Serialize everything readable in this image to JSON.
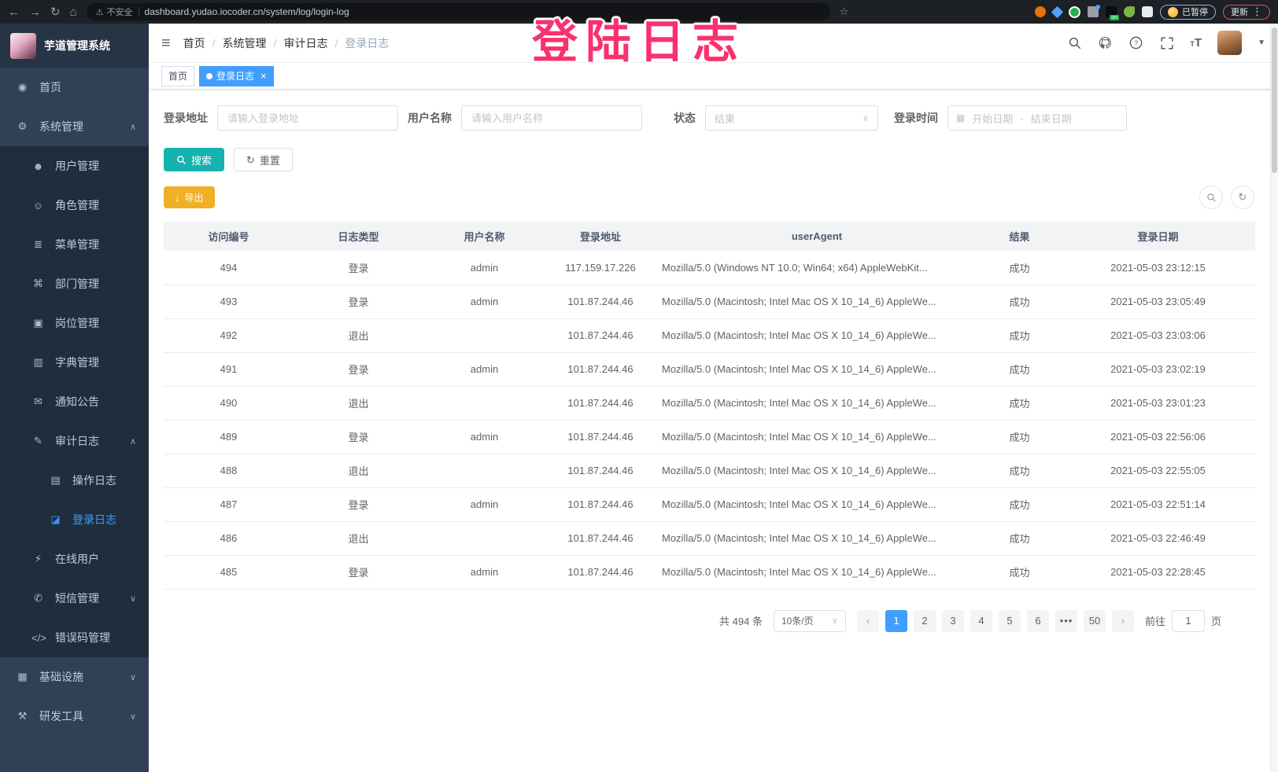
{
  "colors": {
    "accent": "#409EFF",
    "sidebar": "#304156",
    "submenu": "#1F2D3D",
    "search": "#16B2AF",
    "warning": "#F0B024",
    "annotation": "#F9316F"
  },
  "browser": {
    "not_secure": "不安全",
    "url": "dashboard.yudao.iocoder.cn/system/log/login-log",
    "paused_badge": "已暂停",
    "update_button": "更新"
  },
  "annotation": {
    "text": "登陆日志"
  },
  "sidebar": {
    "title": "芋道管理系统",
    "menu": [
      {
        "key": "home",
        "label": "首页",
        "icon": "dashboard-icon",
        "glyph": "◉",
        "level": 0,
        "expand": null,
        "active": false
      },
      {
        "key": "system-management",
        "label": "系统管理",
        "icon": "gear-icon",
        "glyph": "⚙",
        "level": 0,
        "expand": "up",
        "active": false
      },
      {
        "key": "user-management",
        "label": "用户管理",
        "icon": "user-icon",
        "glyph": "☻",
        "level": 1,
        "expand": null,
        "active": false
      },
      {
        "key": "role-management",
        "label": "角色管理",
        "icon": "roles-icon",
        "glyph": "☺",
        "level": 1,
        "expand": null,
        "active": false
      },
      {
        "key": "menu-management",
        "label": "菜单管理",
        "icon": "menu-list-icon",
        "glyph": "≣",
        "level": 1,
        "expand": null,
        "active": false
      },
      {
        "key": "department-management",
        "label": "部门管理",
        "icon": "org-tree-icon",
        "glyph": "⌘",
        "level": 1,
        "expand": null,
        "active": false
      },
      {
        "key": "post-management",
        "label": "岗位管理",
        "icon": "badge-icon",
        "glyph": "▣",
        "level": 1,
        "expand": null,
        "active": false
      },
      {
        "key": "dict-management",
        "label": "字典管理",
        "icon": "dictionary-icon",
        "glyph": "▥",
        "level": 1,
        "expand": null,
        "active": false
      },
      {
        "key": "notice-announcement",
        "label": "通知公告",
        "icon": "announcement-icon",
        "glyph": "✉",
        "level": 1,
        "expand": null,
        "active": false
      },
      {
        "key": "audit-log",
        "label": "审计日志",
        "icon": "audit-log-icon",
        "glyph": "✎",
        "level": 1,
        "expand": "up",
        "active": false
      },
      {
        "key": "operation-log",
        "label": "操作日志",
        "icon": "operation-log-icon",
        "glyph": "▤",
        "level": 2,
        "expand": null,
        "active": false
      },
      {
        "key": "login-log",
        "label": "登录日志",
        "icon": "login-log-icon",
        "glyph": "◪",
        "level": 2,
        "expand": null,
        "active": true
      },
      {
        "key": "online-users",
        "label": "在线用户",
        "icon": "online-users-icon",
        "glyph": "⚡",
        "level": 1,
        "expand": null,
        "active": false
      },
      {
        "key": "sms-management",
        "label": "短信管理",
        "icon": "sms-icon",
        "glyph": "✆",
        "level": 1,
        "expand": "down",
        "active": false
      },
      {
        "key": "error-code-management",
        "label": "错误码管理",
        "icon": "error-code-icon",
        "glyph": "</>",
        "level": 1,
        "expand": null,
        "active": false
      },
      {
        "key": "infrastructure",
        "label": "基础设施",
        "icon": "infrastructure-icon",
        "glyph": "▦",
        "level": 0,
        "expand": "down",
        "active": false
      },
      {
        "key": "dev-tools",
        "label": "研发工具",
        "icon": "devtools-icon",
        "glyph": "⚒",
        "level": 0,
        "expand": "down",
        "active": false
      }
    ]
  },
  "navbar": {
    "breadcrumb": [
      {
        "label": "首页",
        "current": false
      },
      {
        "label": "系统管理",
        "current": false
      },
      {
        "label": "审计日志",
        "current": false
      },
      {
        "label": "登录日志",
        "current": true
      }
    ]
  },
  "tags": [
    {
      "key": "home",
      "label": "首页",
      "active": false
    },
    {
      "key": "login-log",
      "label": "登录日志",
      "active": true
    }
  ],
  "filters": {
    "address": {
      "label": "登录地址",
      "placeholder": "请输入登录地址"
    },
    "username": {
      "label": "用户名称",
      "placeholder": "请输入用户名称"
    },
    "status": {
      "label": "状态",
      "placeholder": "结果"
    },
    "time": {
      "label": "登录时间",
      "start": "开始日期",
      "separator": "-",
      "end": "结束日期"
    }
  },
  "actions": {
    "search": "搜索",
    "reset": "重置",
    "export": "导出"
  },
  "table": {
    "columns": [
      "访问编号",
      "日志类型",
      "用户名称",
      "登录地址",
      "userAgent",
      "结果",
      "登录日期"
    ],
    "rows": [
      {
        "id": "494",
        "type": "登录",
        "user": "admin",
        "ip": "117.159.17.226",
        "agent": "Mozilla/5.0 (Windows NT 10.0; Win64; x64) AppleWebKit...",
        "result": "成功",
        "time": "2021-05-03 23:12:15"
      },
      {
        "id": "493",
        "type": "登录",
        "user": "admin",
        "ip": "101.87.244.46",
        "agent": "Mozilla/5.0 (Macintosh; Intel Mac OS X 10_14_6) AppleWe...",
        "result": "成功",
        "time": "2021-05-03 23:05:49"
      },
      {
        "id": "492",
        "type": "退出",
        "user": "",
        "ip": "101.87.244.46",
        "agent": "Mozilla/5.0 (Macintosh; Intel Mac OS X 10_14_6) AppleWe...",
        "result": "成功",
        "time": "2021-05-03 23:03:06"
      },
      {
        "id": "491",
        "type": "登录",
        "user": "admin",
        "ip": "101.87.244.46",
        "agent": "Mozilla/5.0 (Macintosh; Intel Mac OS X 10_14_6) AppleWe...",
        "result": "成功",
        "time": "2021-05-03 23:02:19"
      },
      {
        "id": "490",
        "type": "退出",
        "user": "",
        "ip": "101.87.244.46",
        "agent": "Mozilla/5.0 (Macintosh; Intel Mac OS X 10_14_6) AppleWe...",
        "result": "成功",
        "time": "2021-05-03 23:01:23"
      },
      {
        "id": "489",
        "type": "登录",
        "user": "admin",
        "ip": "101.87.244.46",
        "agent": "Mozilla/5.0 (Macintosh; Intel Mac OS X 10_14_6) AppleWe...",
        "result": "成功",
        "time": "2021-05-03 22:56:06"
      },
      {
        "id": "488",
        "type": "退出",
        "user": "",
        "ip": "101.87.244.46",
        "agent": "Mozilla/5.0 (Macintosh; Intel Mac OS X 10_14_6) AppleWe...",
        "result": "成功",
        "time": "2021-05-03 22:55:05"
      },
      {
        "id": "487",
        "type": "登录",
        "user": "admin",
        "ip": "101.87.244.46",
        "agent": "Mozilla/5.0 (Macintosh; Intel Mac OS X 10_14_6) AppleWe...",
        "result": "成功",
        "time": "2021-05-03 22:51:14"
      },
      {
        "id": "486",
        "type": "退出",
        "user": "",
        "ip": "101.87.244.46",
        "agent": "Mozilla/5.0 (Macintosh; Intel Mac OS X 10_14_6) AppleWe...",
        "result": "成功",
        "time": "2021-05-03 22:46:49"
      },
      {
        "id": "485",
        "type": "登录",
        "user": "admin",
        "ip": "101.87.244.46",
        "agent": "Mozilla/5.0 (Macintosh; Intel Mac OS X 10_14_6) AppleWe...",
        "result": "成功",
        "time": "2021-05-03 22:28:45"
      }
    ]
  },
  "pagination": {
    "total": "共 494 条",
    "page_size": "10条/页",
    "pages": [
      "1",
      "2",
      "3",
      "4",
      "5",
      "6",
      "•••",
      "50"
    ],
    "active_page": "1",
    "prev": "‹",
    "next": "›",
    "goto_label": "前往",
    "goto_value": "1",
    "page_unit": "页"
  }
}
